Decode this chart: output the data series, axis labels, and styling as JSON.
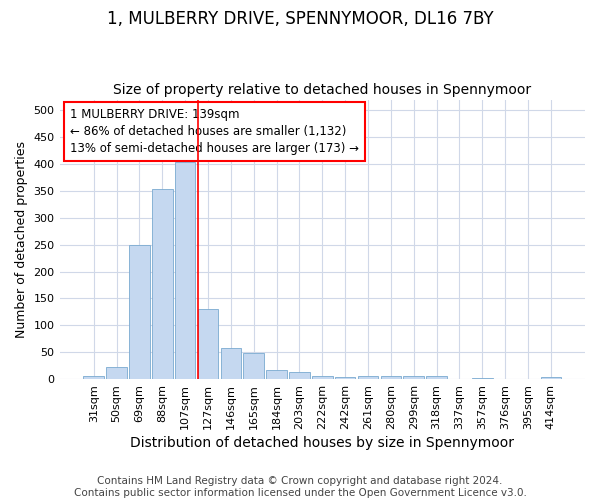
{
  "title": "1, MULBERRY DRIVE, SPENNYMOOR, DL16 7BY",
  "subtitle": "Size of property relative to detached houses in Spennymoor",
  "xlabel": "Distribution of detached houses by size in Spennymoor",
  "ylabel": "Number of detached properties",
  "categories": [
    "31sqm",
    "50sqm",
    "69sqm",
    "88sqm",
    "107sqm",
    "127sqm",
    "146sqm",
    "165sqm",
    "184sqm",
    "203sqm",
    "222sqm",
    "242sqm",
    "261sqm",
    "280sqm",
    "299sqm",
    "318sqm",
    "337sqm",
    "357sqm",
    "376sqm",
    "395sqm",
    "414sqm"
  ],
  "values": [
    5,
    22,
    250,
    353,
    403,
    130,
    57,
    48,
    17,
    14,
    5,
    4,
    6,
    6,
    5,
    5,
    0,
    2,
    0,
    0,
    3
  ],
  "bar_color": "#c5d8f0",
  "bar_edge_color": "#7aaad0",
  "vline_index": 5,
  "vline_color": "red",
  "annotation_line1": "1 MULBERRY DRIVE: 139sqm",
  "annotation_line2": "← 86% of detached houses are smaller (1,132)",
  "annotation_line3": "13% of semi-detached houses are larger (173) →",
  "annotation_box_color": "white",
  "annotation_box_edge_color": "red",
  "ylim": [
    0,
    520
  ],
  "yticks": [
    0,
    50,
    100,
    150,
    200,
    250,
    300,
    350,
    400,
    450,
    500
  ],
  "footer": "Contains HM Land Registry data © Crown copyright and database right 2024.\nContains public sector information licensed under the Open Government Licence v3.0.",
  "background_color": "#ffffff",
  "plot_background_color": "#ffffff",
  "grid_color": "#d0d8e8",
  "title_fontsize": 12,
  "subtitle_fontsize": 10,
  "xlabel_fontsize": 10,
  "ylabel_fontsize": 9,
  "tick_fontsize": 8,
  "footer_fontsize": 7.5,
  "annotation_fontsize": 8.5
}
